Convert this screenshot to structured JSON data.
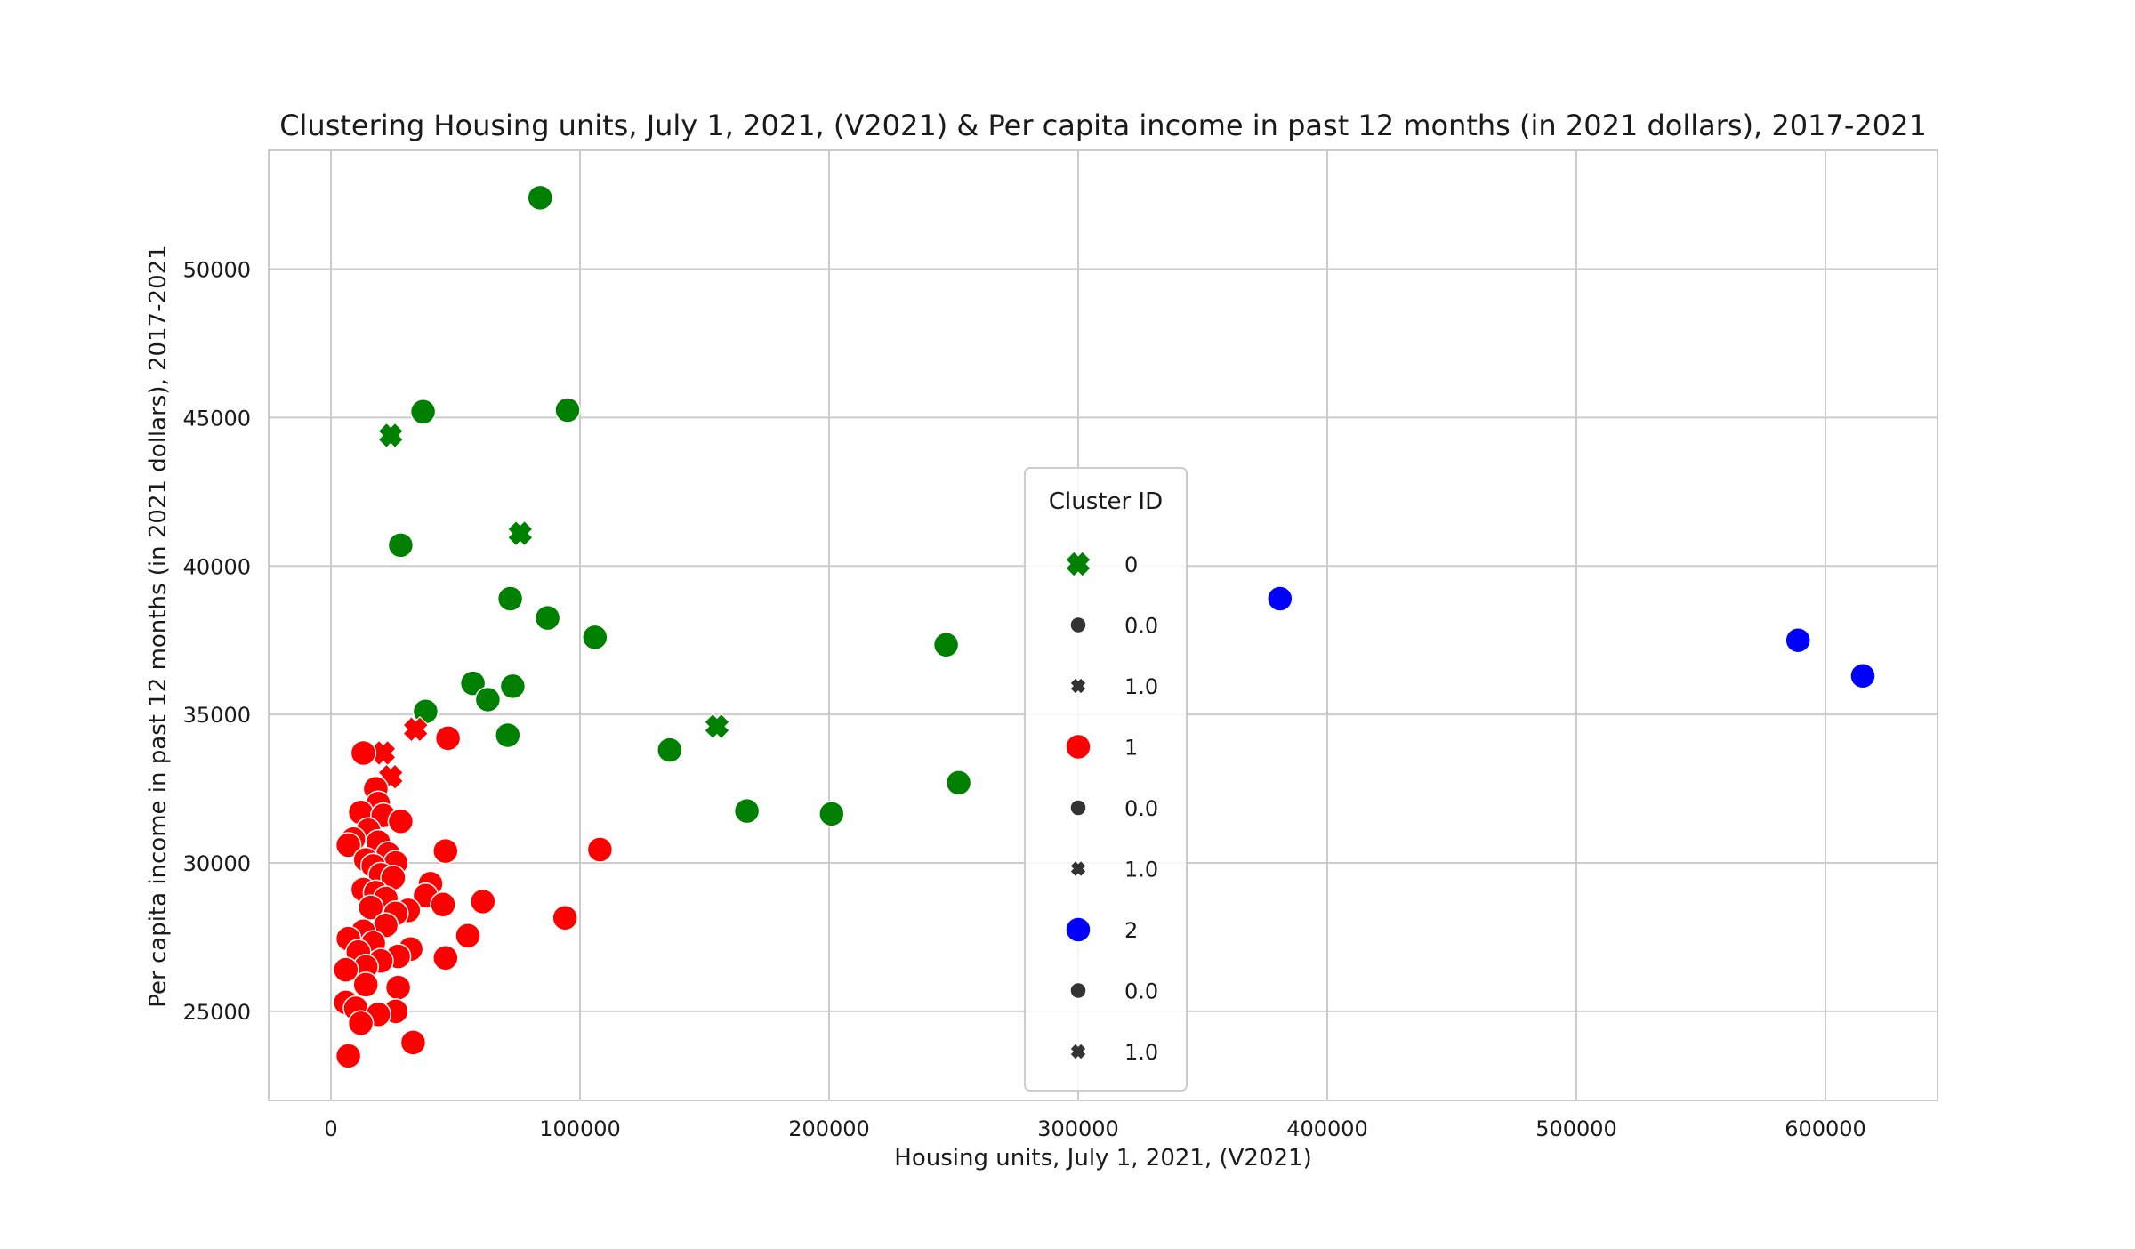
{
  "chart_data": {
    "type": "scatter",
    "title": "Clustering Housing units, July 1, 2021, (V2021) & Per capita income in past 12 months (in 2021 dollars), 2017-2021",
    "xlabel": "Housing units, July 1, 2021, (V2021)",
    "ylabel": "Per capita income in past 12 months (in 2021 dollars), 2017-2021",
    "xlim": [
      -25000,
      645000
    ],
    "ylim": [
      22000,
      54000
    ],
    "xticks": [
      0,
      100000,
      200000,
      300000,
      400000,
      500000,
      600000
    ],
    "yticks": [
      25000,
      30000,
      35000,
      40000,
      45000,
      50000
    ],
    "grid": true,
    "legend": {
      "title": "Cluster ID",
      "placement": "center",
      "entries": [
        {
          "label": "0",
          "kind": "cluster",
          "color": "#008000",
          "marker": "x"
        },
        {
          "label": "0.0",
          "kind": "style",
          "color": "#333333",
          "marker": "circle"
        },
        {
          "label": "1.0",
          "kind": "style",
          "color": "#333333",
          "marker": "x"
        },
        {
          "label": "1",
          "kind": "cluster",
          "color": "#ff0000",
          "marker": "circle"
        },
        {
          "label": "0.0",
          "kind": "style",
          "color": "#333333",
          "marker": "circle"
        },
        {
          "label": "1.0",
          "kind": "style",
          "color": "#333333",
          "marker": "x"
        },
        {
          "label": "2",
          "kind": "cluster",
          "color": "#0000ff",
          "marker": "circle"
        },
        {
          "label": "0.0",
          "kind": "style",
          "color": "#333333",
          "marker": "circle"
        },
        {
          "label": "1.0",
          "kind": "style",
          "color": "#333333",
          "marker": "x"
        }
      ]
    },
    "series": [
      {
        "name": "0",
        "color": "#008000",
        "points": [
          {
            "x": 84000,
            "y": 52400,
            "style": "0.0"
          },
          {
            "x": 37000,
            "y": 45200,
            "style": "0.0"
          },
          {
            "x": 95000,
            "y": 45250,
            "style": "0.0"
          },
          {
            "x": 24000,
            "y": 44400,
            "style": "1.0"
          },
          {
            "x": 76000,
            "y": 41100,
            "style": "1.0"
          },
          {
            "x": 28000,
            "y": 40700,
            "style": "0.0"
          },
          {
            "x": 72000,
            "y": 38900,
            "style": "0.0"
          },
          {
            "x": 87000,
            "y": 38250,
            "style": "0.0"
          },
          {
            "x": 106000,
            "y": 37600,
            "style": "0.0"
          },
          {
            "x": 247000,
            "y": 37350,
            "style": "0.0"
          },
          {
            "x": 57000,
            "y": 36050,
            "style": "0.0"
          },
          {
            "x": 73000,
            "y": 35950,
            "style": "0.0"
          },
          {
            "x": 63000,
            "y": 35500,
            "style": "0.0"
          },
          {
            "x": 38000,
            "y": 35100,
            "style": "0.0"
          },
          {
            "x": 155000,
            "y": 34600,
            "style": "1.0"
          },
          {
            "x": 71000,
            "y": 34300,
            "style": "0.0"
          },
          {
            "x": 136000,
            "y": 33800,
            "style": "0.0"
          },
          {
            "x": 252000,
            "y": 32700,
            "style": "0.0"
          },
          {
            "x": 167000,
            "y": 31750,
            "style": "0.0"
          },
          {
            "x": 201000,
            "y": 31650,
            "style": "0.0"
          }
        ]
      },
      {
        "name": "1",
        "color": "#ff0000",
        "points": [
          {
            "x": 47000,
            "y": 34200,
            "style": "0.0"
          },
          {
            "x": 34000,
            "y": 34500,
            "style": "1.0"
          },
          {
            "x": 21000,
            "y": 33700,
            "style": "1.0"
          },
          {
            "x": 13000,
            "y": 33700,
            "style": "0.0"
          },
          {
            "x": 24000,
            "y": 32900,
            "style": "1.0"
          },
          {
            "x": 18000,
            "y": 32500,
            "style": "0.0"
          },
          {
            "x": 19000,
            "y": 32000,
            "style": "0.0"
          },
          {
            "x": 12000,
            "y": 31700,
            "style": "0.0"
          },
          {
            "x": 21000,
            "y": 31600,
            "style": "0.0"
          },
          {
            "x": 28000,
            "y": 31400,
            "style": "0.0"
          },
          {
            "x": 15000,
            "y": 31100,
            "style": "0.0"
          },
          {
            "x": 9000,
            "y": 30800,
            "style": "0.0"
          },
          {
            "x": 7000,
            "y": 30600,
            "style": "0.0"
          },
          {
            "x": 19000,
            "y": 30700,
            "style": "0.0"
          },
          {
            "x": 23000,
            "y": 30300,
            "style": "0.0"
          },
          {
            "x": 46000,
            "y": 30400,
            "style": "0.0"
          },
          {
            "x": 108000,
            "y": 30450,
            "style": "0.0"
          },
          {
            "x": 14000,
            "y": 30100,
            "style": "0.0"
          },
          {
            "x": 26000,
            "y": 30000,
            "style": "0.0"
          },
          {
            "x": 17000,
            "y": 29900,
            "style": "0.0"
          },
          {
            "x": 20000,
            "y": 29600,
            "style": "0.0"
          },
          {
            "x": 25000,
            "y": 29500,
            "style": "0.0"
          },
          {
            "x": 40000,
            "y": 29300,
            "style": "0.0"
          },
          {
            "x": 13000,
            "y": 29100,
            "style": "0.0"
          },
          {
            "x": 18000,
            "y": 29000,
            "style": "0.0"
          },
          {
            "x": 38000,
            "y": 28900,
            "style": "0.0"
          },
          {
            "x": 22000,
            "y": 28800,
            "style": "0.0"
          },
          {
            "x": 61000,
            "y": 28700,
            "style": "0.0"
          },
          {
            "x": 45000,
            "y": 28600,
            "style": "0.0"
          },
          {
            "x": 16000,
            "y": 28500,
            "style": "0.0"
          },
          {
            "x": 31000,
            "y": 28400,
            "style": "0.0"
          },
          {
            "x": 26000,
            "y": 28300,
            "style": "0.0"
          },
          {
            "x": 94000,
            "y": 28150,
            "style": "0.0"
          },
          {
            "x": 22000,
            "y": 27900,
            "style": "0.0"
          },
          {
            "x": 13000,
            "y": 27700,
            "style": "0.0"
          },
          {
            "x": 55000,
            "y": 27550,
            "style": "0.0"
          },
          {
            "x": 7000,
            "y": 27450,
            "style": "0.0"
          },
          {
            "x": 17000,
            "y": 27300,
            "style": "0.0"
          },
          {
            "x": 32000,
            "y": 27100,
            "style": "0.0"
          },
          {
            "x": 11000,
            "y": 27000,
            "style": "0.0"
          },
          {
            "x": 27000,
            "y": 26850,
            "style": "0.0"
          },
          {
            "x": 46000,
            "y": 26800,
            "style": "0.0"
          },
          {
            "x": 20000,
            "y": 26700,
            "style": "0.0"
          },
          {
            "x": 14000,
            "y": 26500,
            "style": "0.0"
          },
          {
            "x": 6000,
            "y": 26400,
            "style": "0.0"
          },
          {
            "x": 14000,
            "y": 25900,
            "style": "0.0"
          },
          {
            "x": 27000,
            "y": 25800,
            "style": "0.0"
          },
          {
            "x": 6000,
            "y": 25300,
            "style": "0.0"
          },
          {
            "x": 10000,
            "y": 25100,
            "style": "0.0"
          },
          {
            "x": 26000,
            "y": 25000,
            "style": "0.0"
          },
          {
            "x": 19000,
            "y": 24900,
            "style": "0.0"
          },
          {
            "x": 12000,
            "y": 24600,
            "style": "0.0"
          },
          {
            "x": 33000,
            "y": 23950,
            "style": "0.0"
          },
          {
            "x": 7000,
            "y": 23500,
            "style": "0.0"
          }
        ]
      },
      {
        "name": "2",
        "color": "#0000ff",
        "points": [
          {
            "x": 381000,
            "y": 38900,
            "style": "0.0"
          },
          {
            "x": 589000,
            "y": 37500,
            "style": "0.0"
          },
          {
            "x": 615000,
            "y": 36300,
            "style": "0.0"
          }
        ]
      }
    ]
  }
}
